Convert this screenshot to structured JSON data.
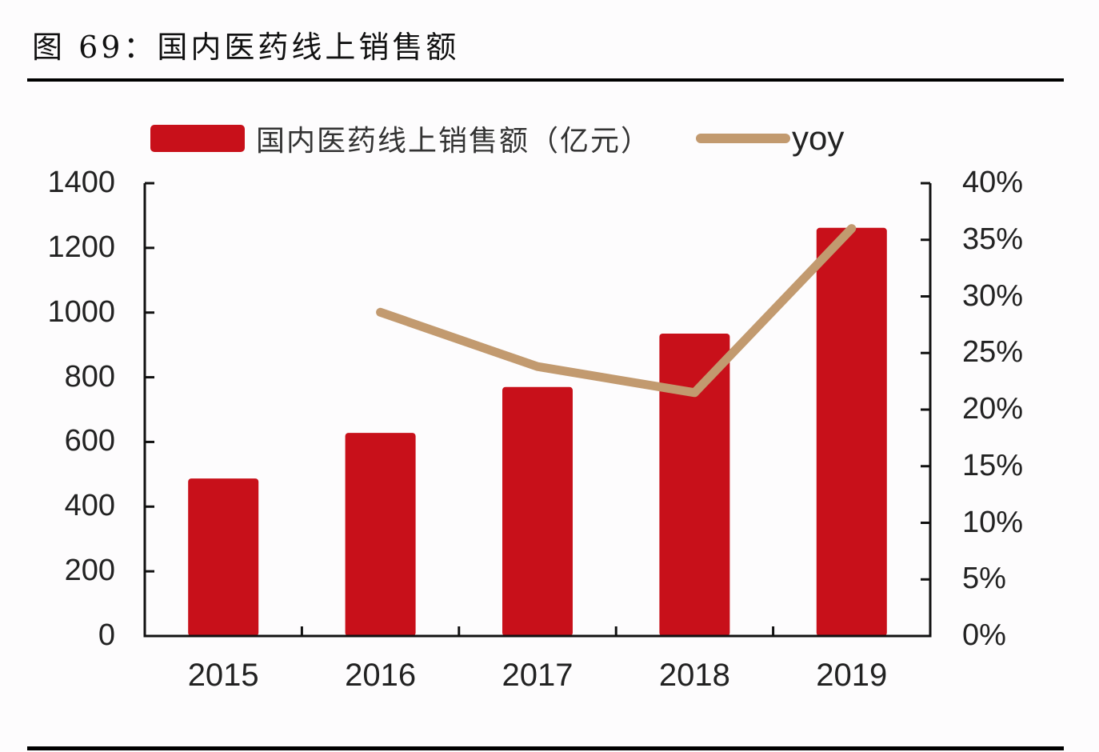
{
  "figure": {
    "title": "图 69：国内医药线上销售额"
  },
  "legend": {
    "bar_label": "国内医药线上销售额（亿元）",
    "line_label": "yoy"
  },
  "axes": {
    "left_ticks": [
      "1400",
      "1200",
      "1000",
      "800",
      "600",
      "400",
      "200",
      "0"
    ],
    "right_ticks": [
      "40%",
      "35%",
      "30%",
      "25%",
      "20%",
      "15%",
      "10%",
      "5%",
      "0%"
    ],
    "categories": [
      "2015",
      "2016",
      "2017",
      "2018",
      "2019"
    ]
  },
  "colors": {
    "bar": "#c8101a",
    "line": "#c29a6f",
    "axis": "#111111"
  },
  "chart_data": {
    "type": "bar+line",
    "title": "图 69：国内医药线上销售额",
    "categories": [
      "2015",
      "2016",
      "2017",
      "2018",
      "2019"
    ],
    "series": [
      {
        "name": "国内医药线上销售额（亿元）",
        "type": "bar",
        "axis": "left",
        "values": [
          487,
          628,
          770,
          935,
          1262
        ]
      },
      {
        "name": "yoy",
        "type": "line",
        "axis": "right",
        "unit": "%",
        "values": [
          null,
          28.6,
          23.8,
          21.5,
          36.0
        ]
      }
    ],
    "xlabel": "",
    "ylabel_left": "",
    "ylabel_right": "",
    "ylim_left": [
      0,
      1400
    ],
    "ylim_right": [
      0,
      40
    ],
    "left_ticks": [
      0,
      200,
      400,
      600,
      800,
      1000,
      1200,
      1400
    ],
    "right_ticks": [
      0,
      5,
      10,
      15,
      20,
      25,
      30,
      35,
      40
    ],
    "grid": false,
    "legend_position": "top"
  }
}
